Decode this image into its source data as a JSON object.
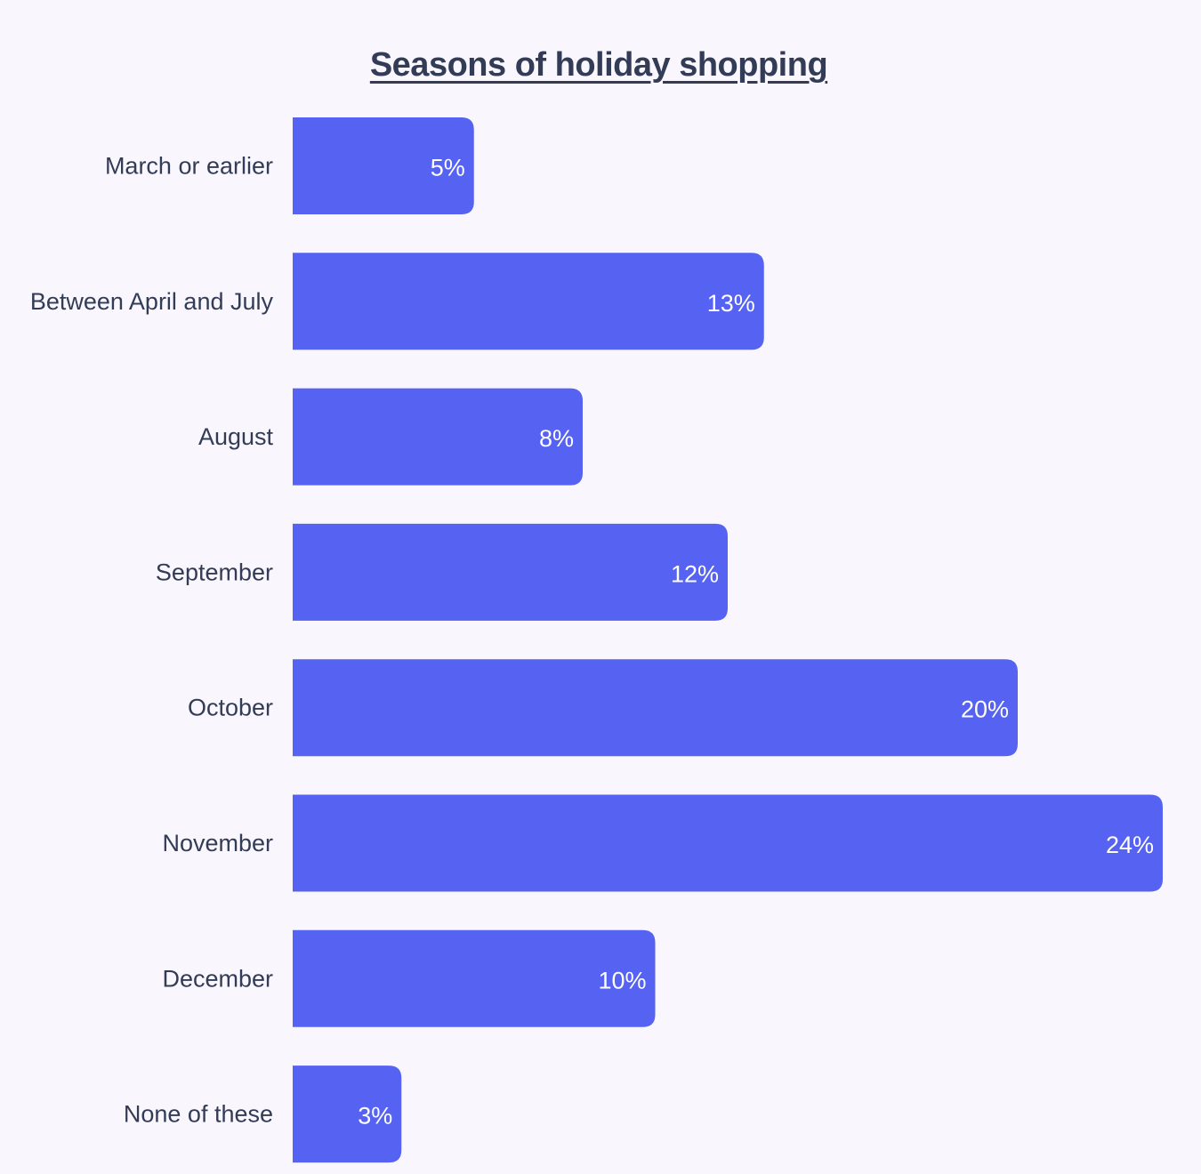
{
  "chart_data": {
    "type": "bar",
    "orientation": "horizontal",
    "title": "Seasons of holiday shopping",
    "categories": [
      "March or earlier",
      "Between April and July",
      "August",
      "September",
      "October",
      "November",
      "December",
      "None of these"
    ],
    "values": [
      5,
      13,
      8,
      12,
      20,
      24,
      10,
      3
    ],
    "value_labels": [
      "5%",
      "13%",
      "8%",
      "12%",
      "20%",
      "24%",
      "10%",
      "3%"
    ],
    "xlim": [
      0,
      24
    ],
    "grid": false,
    "bar_color": "#5562f2"
  }
}
